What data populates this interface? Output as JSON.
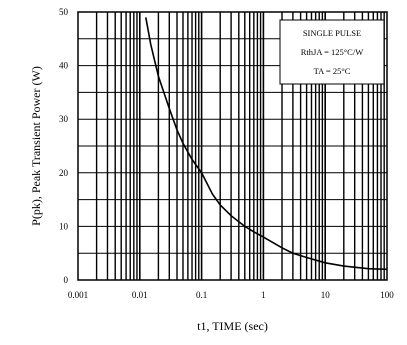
{
  "chart_data": {
    "type": "line",
    "xlabel": "t1, TIME (sec)",
    "ylabel": "P(pk), Peak Transient Power (W)",
    "x_scale": "log",
    "xlim": [
      0.001,
      100
    ],
    "ylim": [
      0,
      50
    ],
    "x_ticks": [
      0.001,
      0.01,
      0.1,
      1,
      10,
      100
    ],
    "x_tick_labels": [
      "0.001",
      "0.01",
      "0.1",
      "1",
      "10",
      "100"
    ],
    "y_ticks": [
      0,
      10,
      20,
      30,
      40,
      50
    ],
    "y_tick_labels": [
      "0",
      "10",
      "20",
      "30",
      "40",
      "50"
    ],
    "grid": true,
    "annotation": {
      "lines": [
        "SINGLE PULSE",
        "RthJA = 125°C/W",
        "TA = 25°C"
      ],
      "position": "top-right"
    },
    "series": [
      {
        "x": [
          0.0125,
          0.015,
          0.02,
          0.03,
          0.04,
          0.05,
          0.07,
          0.1,
          0.15,
          0.2,
          0.3,
          0.5,
          0.7,
          1,
          2,
          3,
          5,
          10,
          20,
          50,
          100
        ],
        "y": [
          49,
          44,
          38,
          32,
          28,
          25.5,
          22.5,
          20,
          16,
          14,
          12,
          10,
          9,
          8,
          6,
          5,
          4.2,
          3.2,
          2.6,
          2.1,
          2.0
        ]
      }
    ]
  }
}
